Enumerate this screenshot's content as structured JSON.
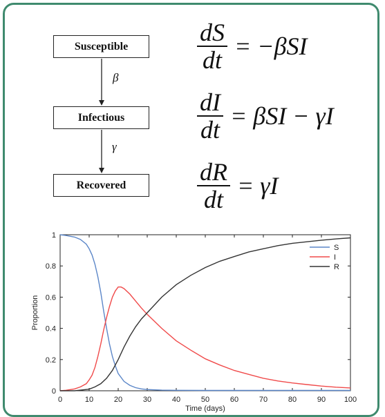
{
  "diagram": {
    "compartments": [
      "Susceptible",
      "Infectious",
      "Recovered"
    ],
    "rates": [
      "β",
      "γ"
    ]
  },
  "equations": [
    {
      "num": "dS",
      "den": "dt",
      "rhs": "= −βSI"
    },
    {
      "num": "dI",
      "den": "dt",
      "rhs": "= βSI − γI"
    },
    {
      "num": "dR",
      "den": "dt",
      "rhs": "= γI"
    }
  ],
  "colors": {
    "frame": "#3f8a6e",
    "S": "#5b86c8",
    "I": "#f04a4a",
    "R": "#333333"
  },
  "chart_data": {
    "type": "line",
    "xlabel": "Time (days)",
    "ylabel": "Proportion",
    "xlim": [
      0,
      100
    ],
    "ylim": [
      0,
      1
    ],
    "xticks": [
      0,
      10,
      20,
      30,
      40,
      50,
      60,
      70,
      80,
      90,
      100
    ],
    "yticks": [
      0,
      0.2,
      0.4,
      0.6,
      0.8,
      1
    ],
    "legend_position": "top-right",
    "series": [
      {
        "name": "S",
        "color": "#5b86c8",
        "x": [
          0,
          2,
          5,
          7,
          9,
          10,
          11,
          12,
          13,
          14,
          15,
          16,
          17,
          18,
          19,
          20,
          22,
          24,
          26,
          28,
          30,
          35,
          40,
          50,
          60,
          70,
          80,
          90,
          100
        ],
        "y": [
          1.0,
          0.995,
          0.985,
          0.97,
          0.94,
          0.91,
          0.87,
          0.81,
          0.73,
          0.63,
          0.51,
          0.4,
          0.3,
          0.22,
          0.16,
          0.11,
          0.06,
          0.035,
          0.02,
          0.012,
          0.008,
          0.004,
          0.003,
          0.002,
          0.002,
          0.002,
          0.002,
          0.002,
          0.002
        ]
      },
      {
        "name": "I",
        "color": "#f04a4a",
        "x": [
          0,
          2,
          5,
          7,
          9,
          10,
          11,
          12,
          13,
          14,
          15,
          16,
          17,
          18,
          19,
          20,
          21,
          22,
          24,
          26,
          28,
          30,
          35,
          40,
          45,
          50,
          55,
          60,
          65,
          70,
          75,
          80,
          85,
          90,
          95,
          100
        ],
        "y": [
          0.0,
          0.003,
          0.012,
          0.025,
          0.045,
          0.07,
          0.1,
          0.15,
          0.22,
          0.3,
          0.39,
          0.47,
          0.54,
          0.6,
          0.64,
          0.665,
          0.665,
          0.655,
          0.62,
          0.575,
          0.53,
          0.49,
          0.4,
          0.32,
          0.26,
          0.205,
          0.165,
          0.13,
          0.105,
          0.08,
          0.063,
          0.05,
          0.04,
          0.03,
          0.023,
          0.018
        ]
      },
      {
        "name": "R",
        "color": "#333333",
        "x": [
          0,
          5,
          10,
          12,
          14,
          16,
          18,
          20,
          22,
          24,
          26,
          28,
          30,
          35,
          40,
          45,
          50,
          55,
          60,
          65,
          70,
          75,
          80,
          85,
          90,
          95,
          100
        ],
        "y": [
          0.0,
          0.0,
          0.01,
          0.025,
          0.045,
          0.08,
          0.13,
          0.2,
          0.28,
          0.35,
          0.41,
          0.46,
          0.5,
          0.6,
          0.68,
          0.74,
          0.79,
          0.83,
          0.86,
          0.89,
          0.91,
          0.93,
          0.945,
          0.955,
          0.965,
          0.973,
          0.98
        ]
      }
    ]
  }
}
